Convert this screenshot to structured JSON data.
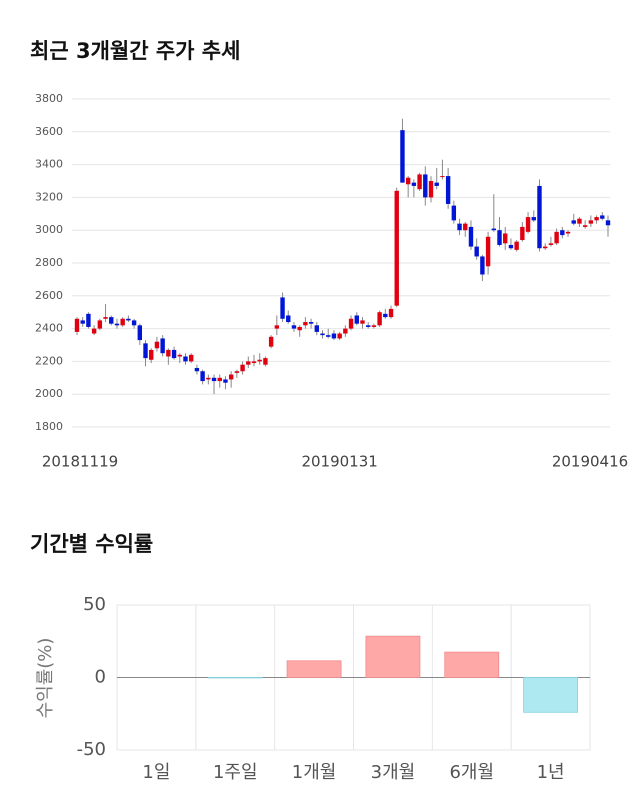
{
  "chart_data": [
    {
      "type": "candlestick",
      "title": "최근 3개월간 주가 추세",
      "categories": [
        "20181119",
        null,
        null,
        null,
        null,
        null,
        null,
        null,
        null,
        null,
        null,
        null,
        null,
        null,
        null,
        null,
        null,
        null,
        null,
        null,
        null,
        null,
        null,
        null,
        null,
        null,
        null,
        null,
        null,
        null,
        null,
        null,
        null,
        null,
        null,
        null,
        null,
        null,
        null,
        null,
        null,
        null,
        null,
        null,
        null,
        null,
        "20190131",
        null,
        null,
        null,
        null,
        null,
        null,
        null,
        null,
        null,
        null,
        null,
        null,
        null,
        null,
        null,
        null,
        null,
        null,
        null,
        null,
        null,
        null,
        null,
        null,
        null,
        null,
        null,
        null,
        null,
        null,
        null,
        null,
        null,
        null,
        null,
        null,
        null,
        null,
        null,
        null,
        null,
        null,
        null,
        null,
        null,
        null,
        "20190416"
      ],
      "open": [
        2380,
        2450,
        2490,
        2370,
        2400,
        2460,
        2470,
        2430,
        2420,
        2460,
        2450,
        2420,
        2310,
        2210,
        2280,
        2340,
        2230,
        2270,
        2230,
        2230,
        2200,
        2160,
        2140,
        2090,
        2100,
        2080,
        2090,
        2090,
        2130,
        2140,
        2180,
        2190,
        2200,
        2180,
        2290,
        2400,
        2590,
        2480,
        2420,
        2390,
        2420,
        2440,
        2420,
        2370,
        2360,
        2370,
        2340,
        2370,
        2400,
        2480,
        2430,
        2420,
        2410,
        2420,
        2490,
        2470,
        2540,
        3610,
        3280,
        3290,
        3250,
        3340,
        3200,
        3290,
        3330,
        3330,
        3150,
        3040,
        3000,
        3020,
        2900,
        2840,
        2780,
        3010,
        3000,
        2920,
        2910,
        2880,
        2940,
        2990,
        3080,
        3270,
        2890,
        2910,
        2920,
        3000,
        2980,
        3060,
        3040,
        3020,
        3040,
        3060,
        3090,
        3060
      ],
      "high": [
        2470,
        2470,
        2500,
        2420,
        2460,
        2550,
        2480,
        2460,
        2470,
        2480,
        2460,
        2430,
        2330,
        2280,
        2350,
        2360,
        2280,
        2290,
        2250,
        2250,
        2250,
        2180,
        2150,
        2120,
        2120,
        2120,
        2110,
        2140,
        2150,
        2200,
        2230,
        2240,
        2250,
        2230,
        2360,
        2480,
        2620,
        2510,
        2440,
        2420,
        2470,
        2460,
        2440,
        2390,
        2400,
        2390,
        2380,
        2420,
        2480,
        2500,
        2470,
        2440,
        2430,
        2510,
        2520,
        2540,
        3260,
        3680,
        3330,
        3310,
        3350,
        3390,
        3330,
        3380,
        3430,
        3380,
        3180,
        3070,
        3050,
        3060,
        2950,
        2850,
        2990,
        3220,
        3080,
        3020,
        2950,
        2940,
        3050,
        3110,
        3120,
        3310,
        2920,
        2960,
        3010,
        3020,
        3000,
        3100,
        3080,
        3060,
        3090,
        3090,
        3110,
        3090
      ],
      "low": [
        2360,
        2410,
        2400,
        2360,
        2390,
        2440,
        2420,
        2400,
        2410,
        2440,
        2400,
        2300,
        2170,
        2190,
        2260,
        2230,
        2180,
        2210,
        2190,
        2180,
        2190,
        2120,
        2060,
        2060,
        2000,
        2040,
        2030,
        2040,
        2100,
        2120,
        2160,
        2170,
        2180,
        2170,
        2280,
        2360,
        2440,
        2430,
        2380,
        2350,
        2400,
        2400,
        2360,
        2340,
        2340,
        2330,
        2330,
        2350,
        2390,
        2420,
        2400,
        2400,
        2400,
        2410,
        2460,
        2460,
        2530,
        3290,
        3200,
        3200,
        3240,
        3150,
        3170,
        3250,
        3310,
        3130,
        3040,
        2970,
        2960,
        2880,
        2820,
        2690,
        2730,
        2990,
        2900,
        2880,
        2880,
        2870,
        2930,
        2980,
        3050,
        2870,
        2880,
        2900,
        2910,
        2950,
        2960,
        3030,
        3020,
        3010,
        3020,
        3040,
        3060,
        2960
      ],
      "close": [
        2460,
        2430,
        2410,
        2400,
        2450,
        2470,
        2430,
        2420,
        2460,
        2450,
        2420,
        2330,
        2220,
        2270,
        2320,
        2250,
        2270,
        2220,
        2240,
        2200,
        2240,
        2140,
        2080,
        2100,
        2080,
        2100,
        2070,
        2120,
        2140,
        2180,
        2200,
        2200,
        2210,
        2220,
        2350,
        2420,
        2460,
        2440,
        2400,
        2410,
        2440,
        2430,
        2380,
        2360,
        2350,
        2340,
        2370,
        2400,
        2460,
        2430,
        2450,
        2410,
        2420,
        2500,
        2470,
        2520,
        3240,
        3290,
        3320,
        3270,
        3340,
        3200,
        3300,
        3270,
        3330,
        3160,
        3060,
        3000,
        3040,
        2900,
        2840,
        2730,
        2960,
        3000,
        2910,
        2980,
        2890,
        2930,
        3020,
        3080,
        3060,
        2890,
        2900,
        2920,
        2990,
        2970,
        2990,
        3040,
        3070,
        3030,
        3060,
        3080,
        3070,
        3030
      ],
      "up_color": "#e0000f",
      "down_color": "#0015d6",
      "ylim": [
        1800,
        3800
      ],
      "yticks": [
        1800,
        2000,
        2200,
        2400,
        2600,
        2800,
        3000,
        3200,
        3400,
        3600,
        3800
      ],
      "grid": true
    },
    {
      "type": "bar",
      "title": "기간별 수익률",
      "ylabel": "수익률(%)",
      "categories": [
        "1일",
        "1주일",
        "1개월",
        "3개월",
        "6개월",
        "1년"
      ],
      "values": [
        0,
        -0.3,
        11.5,
        28.5,
        17.5,
        -24
      ],
      "pos_color": "#ffa8a8",
      "neg_color": "#aee9f2",
      "ylim": [
        -50,
        50
      ],
      "yticks": [
        -50,
        0,
        50
      ],
      "grid": true
    }
  ]
}
